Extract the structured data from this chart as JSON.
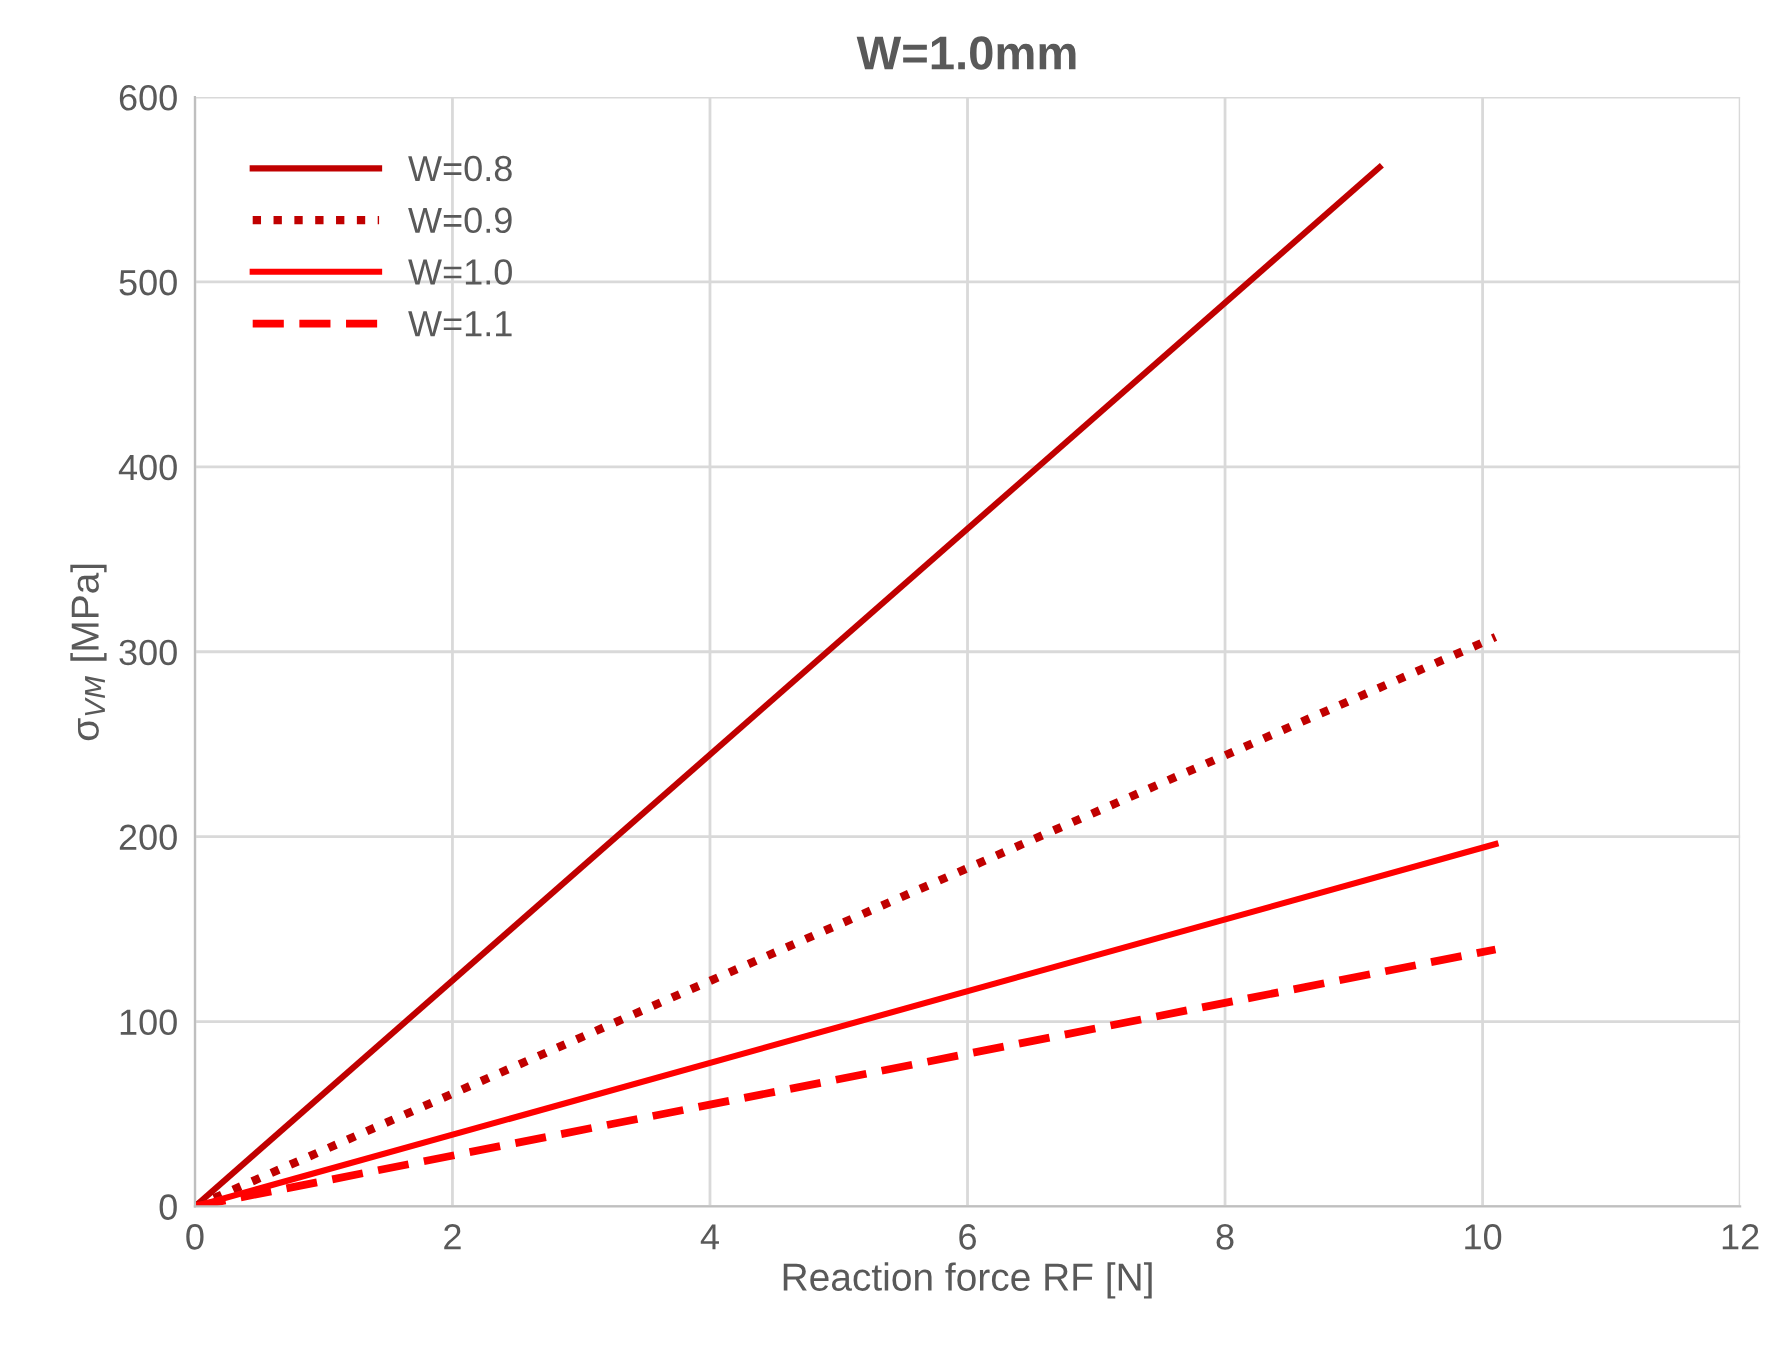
{
  "chart_data": {
    "type": "line",
    "title": "W=1.0mm",
    "xlabel": "Reaction force RF [N]",
    "ylabel": "σ$_{VM}$ [MPa]",
    "series": [
      {
        "name": "W=0.8",
        "color": "#c00000",
        "line_style": "solid",
        "x": [
          0,
          9.2
        ],
        "values": [
          0,
          562
        ]
      },
      {
        "name": "W=0.9",
        "color": "#c00000",
        "line_style": "dotted",
        "x": [
          0,
          10.1
        ],
        "values": [
          0,
          308
        ]
      },
      {
        "name": "W=1.0",
        "color": "#ff0000",
        "line_style": "solid",
        "x": [
          0,
          10.1
        ],
        "values": [
          0,
          196
        ]
      },
      {
        "name": "W=1.1",
        "color": "#ff0000",
        "line_style": "dashed",
        "x": [
          0,
          10.1
        ],
        "values": [
          0,
          139
        ]
      }
    ],
    "xlim": [
      0,
      12
    ],
    "xticks": [
      0,
      2,
      4,
      6,
      8,
      10,
      12
    ],
    "ylim": [
      0,
      600
    ],
    "yticks": [
      0,
      100,
      200,
      300,
      400,
      500,
      600
    ],
    "grid": true,
    "legend": "top left",
    "marker": "none"
  }
}
